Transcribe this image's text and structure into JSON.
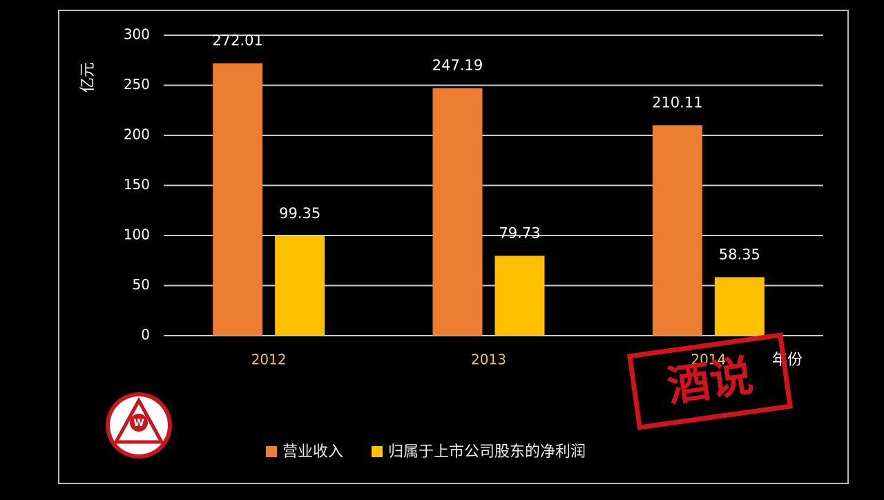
{
  "chart_data": {
    "type": "bar",
    "y_label": "亿元",
    "x_label": "年份",
    "categories": [
      "2012",
      "2013",
      "2014"
    ],
    "series": [
      {
        "name": "营业收入",
        "color": "#ed7d31",
        "values": [
          272.01,
          247.19,
          210.11
        ]
      },
      {
        "name": "归属于上市公司股东的净利润",
        "color": "#ffc000",
        "values": [
          99.35,
          79.73,
          58.35
        ]
      }
    ],
    "ylim": [
      0,
      300
    ],
    "yticks": [
      0,
      50,
      100,
      150,
      200,
      250,
      300
    ],
    "grid": true,
    "legend": "bottom",
    "stamp": "酒说",
    "logo": "W"
  }
}
